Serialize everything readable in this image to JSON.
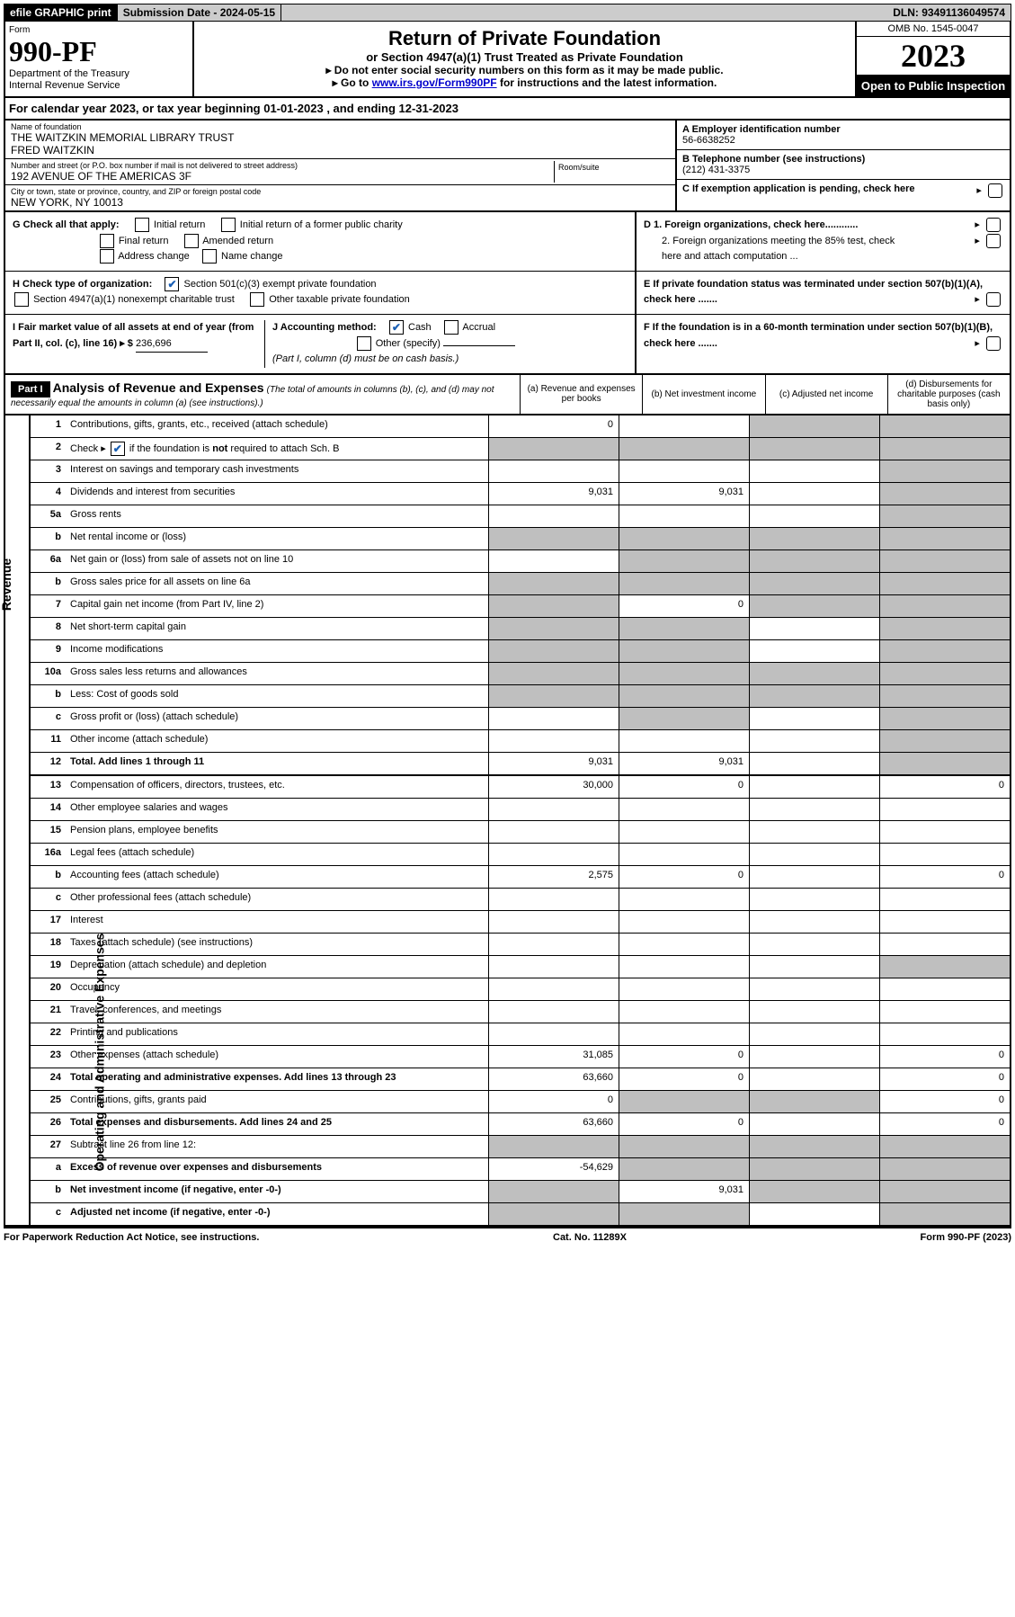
{
  "colors": {
    "accent_blue": "#1a5fb4",
    "link_blue": "#0000cc",
    "grey_bg": "#bfbfbf",
    "black": "#000000",
    "white": "#ffffff",
    "top_bar_grey": "#cccccc"
  },
  "topbar": {
    "efile": "efile GRAPHIC print",
    "submission": "Submission Date - 2024-05-15",
    "dln": "DLN: 93491136049574"
  },
  "header": {
    "form_label": "Form",
    "form_number": "990-PF",
    "dept1": "Department of the Treasury",
    "dept2": "Internal Revenue Service",
    "title": "Return of Private Foundation",
    "subtitle": "or Section 4947(a)(1) Trust Treated as Private Foundation",
    "instr1": "▸ Do not enter social security numbers on this form as it may be made public.",
    "instr2_pre": "▸ Go to ",
    "instr2_link": "www.irs.gov/Form990PF",
    "instr2_post": " for instructions and the latest information.",
    "omb": "OMB No. 1545-0047",
    "year": "2023",
    "inspection": "Open to Public Inspection"
  },
  "cal_year": "For calendar year 2023, or tax year beginning 01-01-2023 , and ending 12-31-2023",
  "entity": {
    "name_label": "Name of foundation",
    "name1": "THE WAITZKIN MEMORIAL LIBRARY TRUST",
    "name2": "FRED WAITZKIN",
    "addr_label": "Number and street (or P.O. box number if mail is not delivered to street address)",
    "addr": "192 AVENUE OF THE AMERICAS 3F",
    "room_label": "Room/suite",
    "city_label": "City or town, state or province, country, and ZIP or foreign postal code",
    "city": "NEW YORK, NY  10013",
    "A_label": "A Employer identification number",
    "A_value": "56-6638252",
    "B_label": "B Telephone number (see instructions)",
    "B_value": "(212) 431-3375",
    "C_label": "C If exemption application is pending, check here"
  },
  "checks": {
    "G_label": "G Check all that apply:",
    "G_opts": [
      "Initial return",
      "Initial return of a former public charity",
      "Final return",
      "Amended return",
      "Address change",
      "Name change"
    ],
    "H_label": "H Check type of organization:",
    "H_opt1": "Section 501(c)(3) exempt private foundation",
    "H_opt2": "Section 4947(a)(1) nonexempt charitable trust",
    "H_opt3": "Other taxable private foundation",
    "I_label": "I Fair market value of all assets at end of year (from Part II, col. (c), line 16) ▸ $",
    "I_value": "236,696",
    "J_label": "J Accounting method:",
    "J_cash": "Cash",
    "J_accrual": "Accrual",
    "J_other": "Other (specify)",
    "J_note": "(Part I, column (d) must be on cash basis.)",
    "D1": "D 1. Foreign organizations, check here............",
    "D2": "2. Foreign organizations meeting the 85% test, check here and attach computation ...",
    "E": "E  If private foundation status was terminated under section 507(b)(1)(A), check here .......",
    "F": "F  If the foundation is in a 60-month termination under section 507(b)(1)(B), check here .......",
    "righttriangle": "▸"
  },
  "part1": {
    "label": "Part I",
    "title": "Analysis of Revenue and Expenses",
    "note": "(The total of amounts in columns (b), (c), and (d) may not necessarily equal the amounts in column (a) (see instructions).)",
    "col_a": "(a) Revenue and expenses per books",
    "col_b": "(b) Net investment income",
    "col_c": "(c) Adjusted net income",
    "col_d": "(d) Disbursements for charitable purposes (cash basis only)"
  },
  "side_labels": {
    "revenue": "Revenue",
    "expenses": "Operating and Administrative Expenses"
  },
  "rows": [
    {
      "no": "1",
      "desc": "Contributions, gifts, grants, etc., received (attach schedule)",
      "a": "0",
      "b": "",
      "c": "grey",
      "d": "grey"
    },
    {
      "no": "2",
      "desc": "Check ▸ ☑ if the foundation is not required to attach Sch. B",
      "a": "grey",
      "b": "grey",
      "c": "grey",
      "d": "grey",
      "checkmark": true
    },
    {
      "no": "3",
      "desc": "Interest on savings and temporary cash investments",
      "a": "",
      "b": "",
      "c": "",
      "d": "grey"
    },
    {
      "no": "4",
      "desc": "Dividends and interest from securities",
      "a": "9,031",
      "b": "9,031",
      "c": "",
      "d": "grey"
    },
    {
      "no": "5a",
      "desc": "Gross rents",
      "a": "",
      "b": "",
      "c": "",
      "d": "grey"
    },
    {
      "no": "b",
      "desc": "Net rental income or (loss)",
      "a": "grey",
      "b": "grey",
      "c": "grey",
      "d": "grey",
      "inset": true
    },
    {
      "no": "6a",
      "desc": "Net gain or (loss) from sale of assets not on line 10",
      "a": "",
      "b": "grey",
      "c": "grey",
      "d": "grey"
    },
    {
      "no": "b",
      "desc": "Gross sales price for all assets on line 6a",
      "a": "grey",
      "b": "grey",
      "c": "grey",
      "d": "grey",
      "inset": true
    },
    {
      "no": "7",
      "desc": "Capital gain net income (from Part IV, line 2)",
      "a": "grey",
      "b": "0",
      "c": "grey",
      "d": "grey"
    },
    {
      "no": "8",
      "desc": "Net short-term capital gain",
      "a": "grey",
      "b": "grey",
      "c": "",
      "d": "grey"
    },
    {
      "no": "9",
      "desc": "Income modifications",
      "a": "grey",
      "b": "grey",
      "c": "",
      "d": "grey"
    },
    {
      "no": "10a",
      "desc": "Gross sales less returns and allowances",
      "a": "grey",
      "b": "grey",
      "c": "grey",
      "d": "grey",
      "inset": true
    },
    {
      "no": "b",
      "desc": "Less: Cost of goods sold",
      "a": "grey",
      "b": "grey",
      "c": "grey",
      "d": "grey",
      "inset": true
    },
    {
      "no": "c",
      "desc": "Gross profit or (loss) (attach schedule)",
      "a": "",
      "b": "grey",
      "c": "",
      "d": "grey"
    },
    {
      "no": "11",
      "desc": "Other income (attach schedule)",
      "a": "",
      "b": "",
      "c": "",
      "d": "grey"
    },
    {
      "no": "12",
      "desc": "Total. Add lines 1 through 11",
      "a": "9,031",
      "b": "9,031",
      "c": "",
      "d": "grey",
      "bold": true
    },
    {
      "no": "13",
      "desc": "Compensation of officers, directors, trustees, etc.",
      "a": "30,000",
      "b": "0",
      "c": "",
      "d": "0"
    },
    {
      "no": "14",
      "desc": "Other employee salaries and wages",
      "a": "",
      "b": "",
      "c": "",
      "d": ""
    },
    {
      "no": "15",
      "desc": "Pension plans, employee benefits",
      "a": "",
      "b": "",
      "c": "",
      "d": ""
    },
    {
      "no": "16a",
      "desc": "Legal fees (attach schedule)",
      "a": "",
      "b": "",
      "c": "",
      "d": ""
    },
    {
      "no": "b",
      "desc": "Accounting fees (attach schedule)",
      "a": "2,575",
      "b": "0",
      "c": "",
      "d": "0"
    },
    {
      "no": "c",
      "desc": "Other professional fees (attach schedule)",
      "a": "",
      "b": "",
      "c": "",
      "d": ""
    },
    {
      "no": "17",
      "desc": "Interest",
      "a": "",
      "b": "",
      "c": "",
      "d": ""
    },
    {
      "no": "18",
      "desc": "Taxes (attach schedule) (see instructions)",
      "a": "",
      "b": "",
      "c": "",
      "d": ""
    },
    {
      "no": "19",
      "desc": "Depreciation (attach schedule) and depletion",
      "a": "",
      "b": "",
      "c": "",
      "d": "grey"
    },
    {
      "no": "20",
      "desc": "Occupancy",
      "a": "",
      "b": "",
      "c": "",
      "d": ""
    },
    {
      "no": "21",
      "desc": "Travel, conferences, and meetings",
      "a": "",
      "b": "",
      "c": "",
      "d": ""
    },
    {
      "no": "22",
      "desc": "Printing and publications",
      "a": "",
      "b": "",
      "c": "",
      "d": ""
    },
    {
      "no": "23",
      "desc": "Other expenses (attach schedule)",
      "a": "31,085",
      "b": "0",
      "c": "",
      "d": "0"
    },
    {
      "no": "24",
      "desc": "Total operating and administrative expenses. Add lines 13 through 23",
      "a": "63,660",
      "b": "0",
      "c": "",
      "d": "0",
      "bold": true
    },
    {
      "no": "25",
      "desc": "Contributions, gifts, grants paid",
      "a": "0",
      "b": "grey",
      "c": "grey",
      "d": "0"
    },
    {
      "no": "26",
      "desc": "Total expenses and disbursements. Add lines 24 and 25",
      "a": "63,660",
      "b": "0",
      "c": "",
      "d": "0",
      "bold": true
    },
    {
      "no": "27",
      "desc": "Subtract line 26 from line 12:",
      "a": "grey",
      "b": "grey",
      "c": "grey",
      "d": "grey"
    },
    {
      "no": "a",
      "desc": "Excess of revenue over expenses and disbursements",
      "a": "-54,629",
      "b": "grey",
      "c": "grey",
      "d": "grey",
      "bold": true
    },
    {
      "no": "b",
      "desc": "Net investment income (if negative, enter -0-)",
      "a": "grey",
      "b": "9,031",
      "c": "grey",
      "d": "grey",
      "bold": true
    },
    {
      "no": "c",
      "desc": "Adjusted net income (if negative, enter -0-)",
      "a": "grey",
      "b": "grey",
      "c": "",
      "d": "grey",
      "bold": true
    }
  ],
  "footer": {
    "left": "For Paperwork Reduction Act Notice, see instructions.",
    "center": "Cat. No. 11289X",
    "right": "Form 990-PF (2023)"
  }
}
